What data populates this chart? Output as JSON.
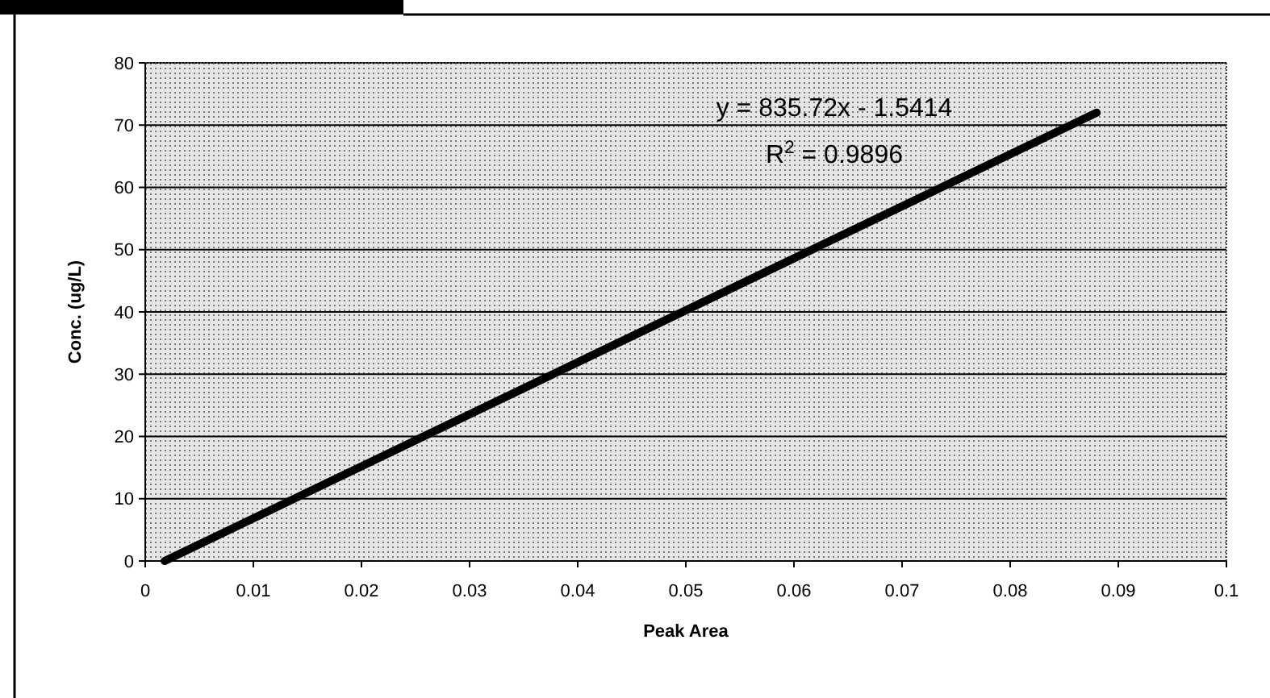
{
  "chart_data": {
    "type": "line",
    "xlabel": "Peak Area",
    "ylabel": "Conc. (ug/L)",
    "annotations": [
      "y = 835.72x - 1.5414",
      "R$^{2}$ = 0.9896"
    ],
    "series": [
      {
        "color": "#000000",
        "x": [
          0.0018,
          0.088
        ],
        "values": [
          0,
          72
        ]
      }
    ],
    "xlim": [
      0,
      0.1
    ],
    "xticks": [
      0,
      0.01,
      0.02,
      0.03,
      0.04,
      0.05,
      0.06,
      0.07,
      0.08,
      0.09,
      0.1
    ],
    "ylim": [
      0,
      80
    ],
    "yticks": [
      0,
      10,
      20,
      30,
      40,
      50,
      60,
      70,
      80
    ],
    "grid": "y",
    "marker": "none",
    "line_style": "solid"
  }
}
